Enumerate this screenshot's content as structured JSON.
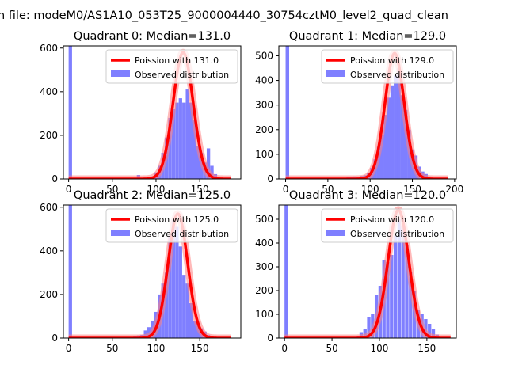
{
  "figure_title": "n file: modeM0/AS1A10_053T25_9000004440_30754cztM0_level2_quad_clean",
  "colors": {
    "hist": "#7f7fff",
    "fit": "#ff0000",
    "fit_glow": "#ff8080",
    "legend_edge": "#cccccc"
  },
  "chart_data": [
    {
      "type": "bar",
      "title": "Quadrant 0: Median=131.0",
      "legend": [
        "Poission with 131.0",
        "Observed distribution"
      ],
      "legend_position": "top-right",
      "xlim": [
        -6,
        197
      ],
      "ylim": [
        0,
        610
      ],
      "xticks": [
        0,
        50,
        100,
        150
      ],
      "yticks": [
        0,
        200,
        400,
        600
      ],
      "hist_bin_width": 3.9,
      "hist": [
        [
          0,
          610
        ],
        [
          78,
          18
        ],
        [
          82,
          5
        ],
        [
          86,
          5
        ],
        [
          90,
          8
        ],
        [
          94,
          12
        ],
        [
          98,
          30
        ],
        [
          102,
          60
        ],
        [
          106,
          120
        ],
        [
          110,
          190
        ],
        [
          114,
          280
        ],
        [
          118,
          320
        ],
        [
          122,
          350
        ],
        [
          126,
          370
        ],
        [
          130,
          350
        ],
        [
          134,
          410
        ],
        [
          138,
          350
        ],
        [
          142,
          270
        ],
        [
          146,
          150
        ],
        [
          150,
          120
        ],
        [
          154,
          75
        ],
        [
          158,
          140
        ],
        [
          162,
          60
        ],
        [
          166,
          22
        ],
        [
          170,
          8
        ]
      ],
      "fit_mean": 131.0,
      "fit_peak": 580,
      "fit_range": [
        0,
        186
      ]
    },
    {
      "type": "bar",
      "title": "Quadrant 1: Median=129.0",
      "legend": [
        "Poission with 129.0",
        "Observed distribution"
      ],
      "legend_position": "top-right",
      "xlim": [
        -8,
        202
      ],
      "ylim": [
        0,
        540
      ],
      "xticks": [
        0,
        50,
        100,
        150,
        200
      ],
      "yticks": [
        0,
        100,
        200,
        300,
        400,
        500
      ],
      "hist_bin_width": 4.2,
      "hist": [
        [
          0,
          540
        ],
        [
          72,
          8
        ],
        [
          76,
          8
        ],
        [
          80,
          10
        ],
        [
          84,
          8
        ],
        [
          88,
          12
        ],
        [
          92,
          15
        ],
        [
          96,
          25
        ],
        [
          100,
          45
        ],
        [
          104,
          80
        ],
        [
          108,
          130
        ],
        [
          112,
          180
        ],
        [
          116,
          260
        ],
        [
          120,
          330
        ],
        [
          124,
          380
        ],
        [
          128,
          420
        ],
        [
          132,
          450
        ],
        [
          136,
          340
        ],
        [
          140,
          280
        ],
        [
          144,
          200
        ],
        [
          148,
          120
        ],
        [
          152,
          95
        ],
        [
          156,
          50
        ],
        [
          160,
          30
        ],
        [
          164,
          20
        ],
        [
          168,
          10
        ]
      ],
      "fit_mean": 129.0,
      "fit_peak": 510,
      "fit_range": [
        0,
        192
      ]
    },
    {
      "type": "bar",
      "title": "Quadrant 2: Median=125.0",
      "legend": [
        "Poission with 125.0",
        "Observed distribution"
      ],
      "legend_position": "top-right",
      "xlim": [
        -6,
        197
      ],
      "ylim": [
        0,
        610
      ],
      "xticks": [
        0,
        50,
        100,
        150
      ],
      "yticks": [
        0,
        200,
        400,
        600
      ],
      "hist_bin_width": 3.9,
      "hist": [
        [
          0,
          610
        ],
        [
          70,
          5
        ],
        [
          74,
          8
        ],
        [
          78,
          12
        ],
        [
          82,
          15
        ],
        [
          86,
          35
        ],
        [
          90,
          50
        ],
        [
          94,
          80
        ],
        [
          98,
          120
        ],
        [
          102,
          200
        ],
        [
          106,
          250
        ],
        [
          110,
          300
        ],
        [
          114,
          470
        ],
        [
          118,
          540
        ],
        [
          122,
          510
        ],
        [
          126,
          420
        ],
        [
          130,
          290
        ],
        [
          134,
          250
        ],
        [
          138,
          160
        ],
        [
          142,
          80
        ],
        [
          146,
          70
        ],
        [
          150,
          45
        ],
        [
          154,
          30
        ],
        [
          158,
          15
        ],
        [
          162,
          5
        ]
      ],
      "fit_mean": 125.0,
      "fit_peak": 570,
      "fit_range": [
        0,
        186
      ]
    },
    {
      "type": "bar",
      "title": "Quadrant 3: Median=120.0",
      "legend": [
        "Poission with 120.0",
        "Observed distribution"
      ],
      "legend_position": "top-right",
      "xlim": [
        -6,
        181
      ],
      "ylim": [
        0,
        560
      ],
      "xticks": [
        0,
        50,
        100,
        150
      ],
      "yticks": [
        0,
        100,
        200,
        300,
        400,
        500
      ],
      "hist_bin_width": 3.6,
      "hist": [
        [
          0,
          560
        ],
        [
          75,
          10
        ],
        [
          79,
          25
        ],
        [
          83,
          40
        ],
        [
          87,
          90
        ],
        [
          91,
          100
        ],
        [
          95,
          180
        ],
        [
          99,
          220
        ],
        [
          103,
          330
        ],
        [
          107,
          320
        ],
        [
          111,
          350
        ],
        [
          115,
          430
        ],
        [
          119,
          500
        ],
        [
          123,
          470
        ],
        [
          127,
          390
        ],
        [
          131,
          280
        ],
        [
          135,
          200
        ],
        [
          139,
          120
        ],
        [
          143,
          100
        ],
        [
          147,
          80
        ],
        [
          151,
          60
        ],
        [
          155,
          40
        ],
        [
          159,
          15
        ]
      ],
      "fit_mean": 120.0,
      "fit_peak": 540,
      "fit_range": [
        0,
        175
      ]
    }
  ]
}
